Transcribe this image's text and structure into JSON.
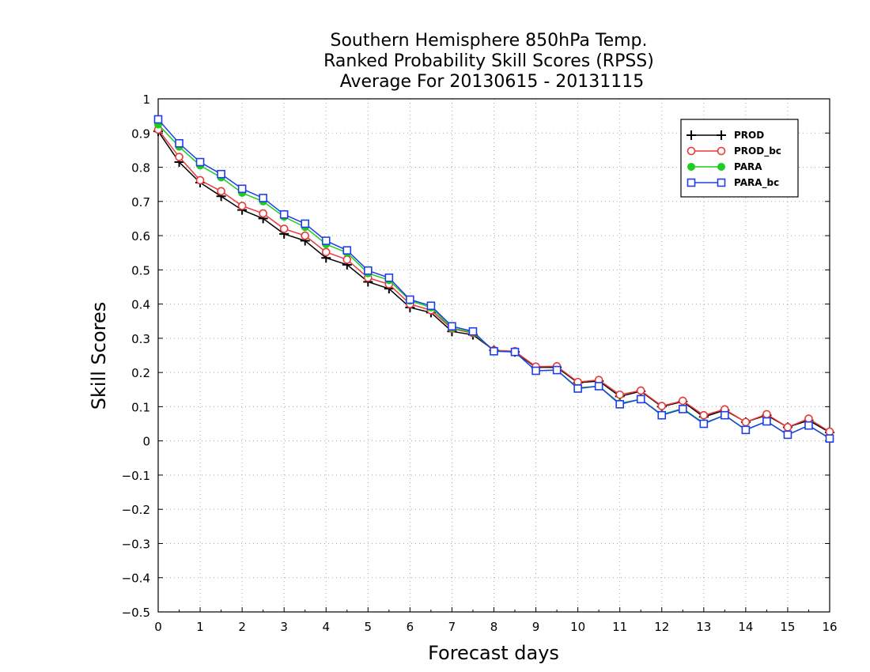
{
  "chart_data": {
    "type": "line",
    "title_lines": [
      "Southern Hemisphere 850hPa Temp.",
      "Ranked Probability Skill Scores (RPSS)",
      "Average For 20130615 - 20131115"
    ],
    "xlabel": "Forecast days",
    "ylabel": "Skill Scores",
    "xlim": [
      0,
      16
    ],
    "ylim": [
      -0.5,
      1
    ],
    "xticks": [
      "0",
      "1",
      "2",
      "3",
      "4",
      "5",
      "6",
      "7",
      "8",
      "9",
      "10",
      "11",
      "12",
      "13",
      "14",
      "15",
      "16"
    ],
    "yticks": [
      "−0.5",
      "−0.4",
      "−0.3",
      "−0.2",
      "−0.1",
      "0",
      "0.1",
      "0.2",
      "0.3",
      "0.4",
      "0.5",
      "0.6",
      "0.7",
      "0.8",
      "0.9",
      "1"
    ],
    "grid": true,
    "legend_position": "top-right",
    "x": [
      0,
      0.5,
      1,
      1.5,
      2,
      2.5,
      3,
      3.5,
      4,
      4.5,
      5,
      5.5,
      6,
      6.5,
      7,
      7.5,
      8,
      8.5,
      9,
      9.5,
      10,
      10.5,
      11,
      11.5,
      12,
      12.5,
      13,
      13.5,
      14,
      14.5,
      15,
      15.5,
      16
    ],
    "series": [
      {
        "name": "PROD",
        "color": "#000000",
        "marker": "plus",
        "values": [
          0.905,
          0.815,
          0.755,
          0.715,
          0.675,
          0.65,
          0.605,
          0.585,
          0.535,
          0.515,
          0.465,
          0.445,
          0.39,
          0.375,
          0.32,
          0.31,
          0.265,
          0.26,
          0.215,
          0.215,
          0.17,
          0.175,
          0.13,
          0.145,
          0.1,
          0.115,
          0.07,
          0.09,
          0.055,
          0.075,
          0.04,
          0.06,
          0.025
        ]
      },
      {
        "name": "PROD_bc",
        "color": "#e8393a",
        "marker": "circle-open",
        "values": [
          0.91,
          0.83,
          0.762,
          0.73,
          0.687,
          0.665,
          0.62,
          0.6,
          0.552,
          0.53,
          0.477,
          0.458,
          0.4,
          0.382,
          0.328,
          0.315,
          0.265,
          0.262,
          0.217,
          0.218,
          0.172,
          0.178,
          0.135,
          0.147,
          0.102,
          0.117,
          0.075,
          0.092,
          0.055,
          0.078,
          0.04,
          0.065,
          0.027
        ]
      },
      {
        "name": "PARA",
        "color": "#1fcc1f",
        "marker": "circle-filled",
        "values": [
          0.925,
          0.86,
          0.805,
          0.77,
          0.725,
          0.7,
          0.655,
          0.625,
          0.575,
          0.55,
          0.49,
          0.47,
          0.41,
          0.39,
          0.33,
          0.317,
          0.263,
          0.26,
          0.205,
          0.207,
          0.155,
          0.16,
          0.11,
          0.122,
          0.077,
          0.095,
          0.052,
          0.075,
          0.033,
          0.057,
          0.018,
          0.045,
          0.008
        ]
      },
      {
        "name": "PARA_bc",
        "color": "#1f3ee8",
        "marker": "square-open",
        "values": [
          0.94,
          0.87,
          0.815,
          0.78,
          0.737,
          0.71,
          0.662,
          0.635,
          0.585,
          0.557,
          0.498,
          0.477,
          0.413,
          0.395,
          0.335,
          0.32,
          0.262,
          0.26,
          0.205,
          0.207,
          0.153,
          0.16,
          0.107,
          0.122,
          0.075,
          0.093,
          0.05,
          0.075,
          0.032,
          0.057,
          0.018,
          0.045,
          0.007
        ]
      }
    ]
  }
}
